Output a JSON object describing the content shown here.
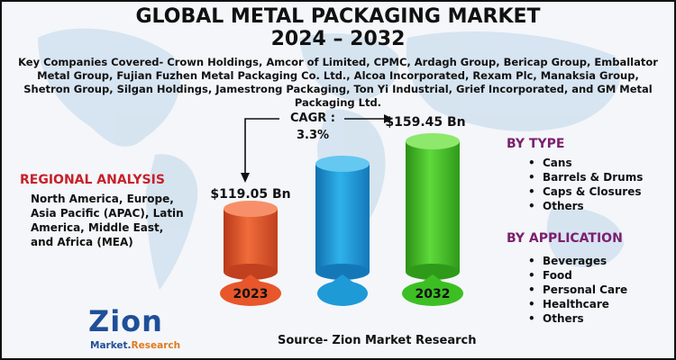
{
  "title_line1": "GLOBAL METAL PACKAGING MARKET",
  "title_line2": "2024 – 2032",
  "companies": "Key Companies Covered- Crown Holdings, Amcor of Limited, CPMC, Ardagh Group, Bericap Group, Emballator Metal Group, Fujian Fuzhen Metal Packaging Co. Ltd., Alcoa Incorporated, Rexam Plc, Manaksia Group, Shetron Group, Silgan Holdings, Jamestrong Packaging, Ton Yi Industrial, Grief Incorporated, and GM Metal Packaging Ltd.",
  "regional": {
    "title": "REGIONAL ANALYSIS",
    "text": "North America, Europe, Asia Pacific (APAC), Latin America, Middle East, and Africa (MEA)"
  },
  "cagr": {
    "label": "CAGR :",
    "value": "3.3%"
  },
  "by_type": {
    "title": "BY TYPE",
    "items": [
      "Cans",
      "Barrels & Drums",
      "Caps & Closures",
      "Others"
    ]
  },
  "by_application": {
    "title": "BY APPLICATION",
    "items": [
      "Beverages",
      "Food",
      "Personal Care",
      "Healthcare",
      "Others"
    ]
  },
  "source": "Source- Zion Market Research",
  "logo": {
    "main": "Zion",
    "sub_a": "Market.",
    "sub_b": "Research"
  },
  "colors": {
    "bar_2023": "#e8562b",
    "bar_mid": "#1e9ad6",
    "bar_2032": "#3dbf24",
    "region_title": "#c8202a",
    "panel_title": "#7b1f6e"
  },
  "chart_data": {
    "type": "bar",
    "categories": [
      "2023",
      "",
      "2032"
    ],
    "values": [
      119.05,
      null,
      159.45
    ],
    "data_labels": [
      "$119.05 Bn",
      "",
      "$159.45 Bn"
    ],
    "title": "GLOBAL METAL PACKAGING MARKET 2024 – 2032",
    "annotations": [
      "CAGR : 3.3%"
    ]
  }
}
